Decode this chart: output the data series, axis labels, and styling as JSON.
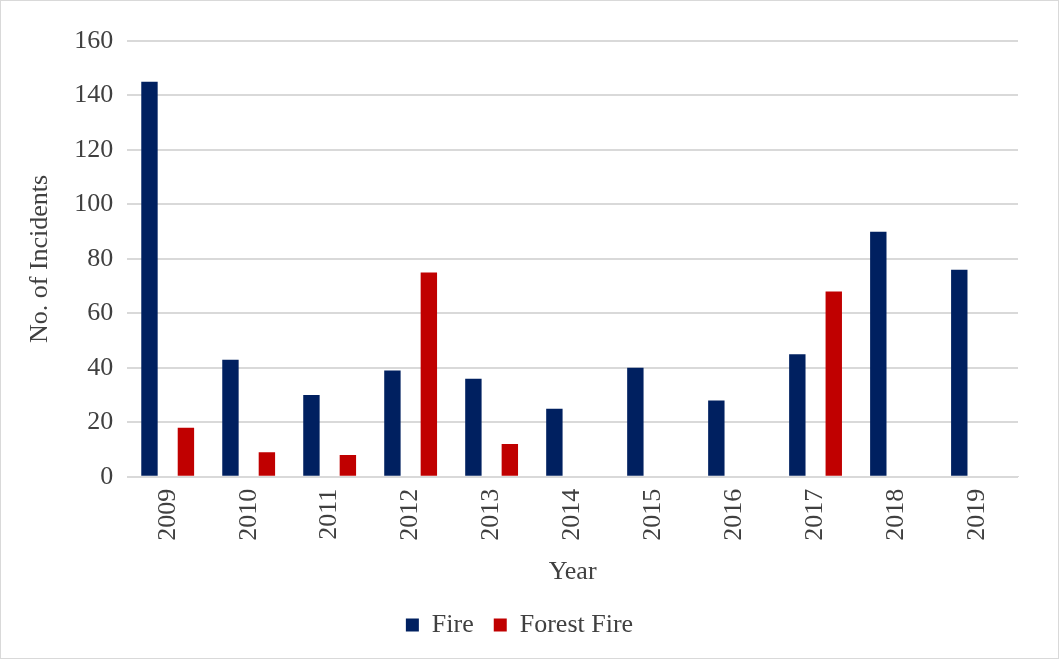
{
  "chart_data": {
    "type": "bar",
    "xlabel": "Year",
    "ylabel": "No. of Incidents",
    "categories": [
      "2009",
      "2010",
      "2011",
      "2012",
      "2013",
      "2014",
      "2015",
      "2016",
      "2017",
      "2018",
      "2019"
    ],
    "series": [
      {
        "name": "Fire",
        "color": "#002060",
        "values": [
          145,
          43,
          30,
          39,
          36,
          25,
          40,
          28,
          45,
          90,
          76
        ]
      },
      {
        "name": "Forest Fire",
        "color": "#c00000",
        "values": [
          18,
          9,
          8,
          75,
          12,
          0,
          0,
          0,
          68,
          0,
          0
        ]
      }
    ],
    "ylim": [
      0,
      160
    ],
    "yticks": [
      0,
      20,
      40,
      60,
      80,
      100,
      120,
      140,
      160
    ],
    "grid": "y",
    "legend": "bottom"
  }
}
